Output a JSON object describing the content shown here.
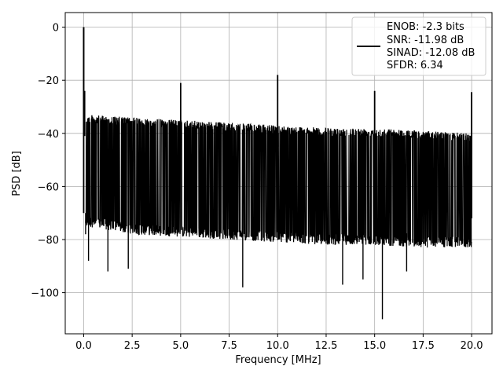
{
  "chart_data": {
    "type": "line",
    "xlabel": "Frequency [MHz]",
    "ylabel": "PSD [dB]",
    "xlim": [
      -0.95,
      21.05
    ],
    "ylim": [
      -115.5,
      5.5
    ],
    "x_ticks": [
      0.0,
      2.5,
      5.0,
      7.5,
      10.0,
      12.5,
      15.0,
      17.5,
      20.0
    ],
    "x_tick_labels": [
      "0.0",
      "2.5",
      "5.0",
      "7.5",
      "10.0",
      "12.5",
      "15.0",
      "17.5",
      "20.0"
    ],
    "y_ticks": [
      0,
      -20,
      -40,
      -60,
      -80,
      -100
    ],
    "y_tick_labels": [
      "0",
      "−20",
      "−40",
      "−60",
      "−80",
      "−100"
    ],
    "grid": true,
    "legend_position": "top-right",
    "legend_lines": [
      "ENOB: -2.3 bits",
      "SNR: -11.98 dB",
      "SINAD: -12.08 dB",
      "SFDR: 6.34"
    ],
    "line_color": "#000000",
    "series": [
      {
        "description_x": "Frequency [MHz]",
        "noise_floor_upper_envelope": [
          [
            0.1,
            -33
          ],
          [
            2.5,
            -34
          ],
          [
            5.0,
            -35
          ],
          [
            7.5,
            -36
          ],
          [
            10.0,
            -37
          ],
          [
            12.5,
            -38
          ],
          [
            15.0,
            -38
          ],
          [
            17.5,
            -39
          ],
          [
            20.0,
            -40
          ]
        ],
        "noise_floor_lower_envelope": [
          [
            0.1,
            -75
          ],
          [
            2.5,
            -78
          ],
          [
            5.0,
            -79
          ],
          [
            7.5,
            -80
          ],
          [
            10.0,
            -81
          ],
          [
            12.5,
            -82
          ],
          [
            15.0,
            -82
          ],
          [
            17.5,
            -83
          ],
          [
            20.0,
            -83
          ]
        ],
        "peaks": [
          {
            "x": 0.0,
            "y": 0.0
          },
          {
            "x": 0.05,
            "y": -24
          },
          {
            "x": 5.0,
            "y": -21
          },
          {
            "x": 10.0,
            "y": -18
          },
          {
            "x": 15.0,
            "y": -24
          },
          {
            "x": 20.0,
            "y": -24.5
          }
        ],
        "dips": [
          {
            "x": 0.1,
            "y": -78
          },
          {
            "x": 0.25,
            "y": -88
          },
          {
            "x": 1.25,
            "y": -92
          },
          {
            "x": 2.3,
            "y": -91
          },
          {
            "x": 8.2,
            "y": -98
          },
          {
            "x": 13.35,
            "y": -97
          },
          {
            "x": 14.4,
            "y": -95
          },
          {
            "x": 15.4,
            "y": -110
          },
          {
            "x": 16.65,
            "y": -92
          }
        ]
      }
    ]
  }
}
